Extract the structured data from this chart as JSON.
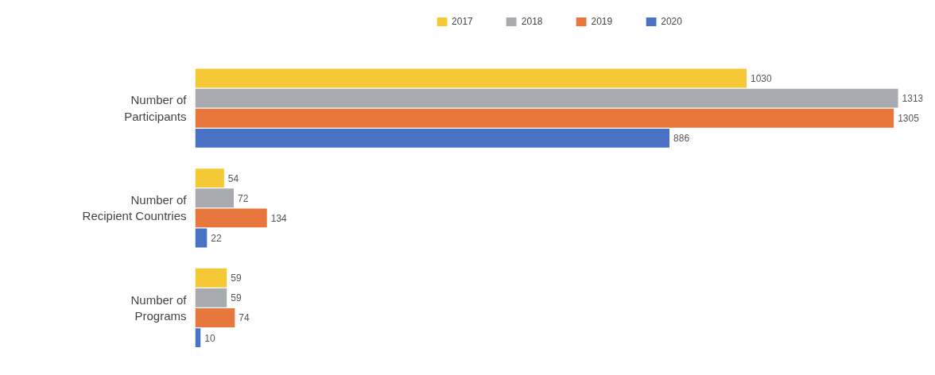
{
  "chart_data": {
    "type": "bar",
    "orientation": "horizontal",
    "categories": [
      "Number of\nParticipants",
      "Number of\nRecipient Countries",
      "Number of\nPrograms"
    ],
    "series": [
      {
        "name": "2017",
        "color": "#f5c936",
        "values": [
          1030,
          54,
          59
        ]
      },
      {
        "name": "2018",
        "color": "#a9a9b0",
        "values": [
          1313,
          72,
          59
        ]
      },
      {
        "name": "2019",
        "color": "#e8773e",
        "values": [
          1305,
          134,
          74
        ]
      },
      {
        "name": "2020",
        "color": "#4a72c4",
        "values": [
          886,
          22,
          10
        ]
      }
    ],
    "tick_labels": "y",
    "data_labels": true,
    "legend": "top",
    "grid": false
  }
}
